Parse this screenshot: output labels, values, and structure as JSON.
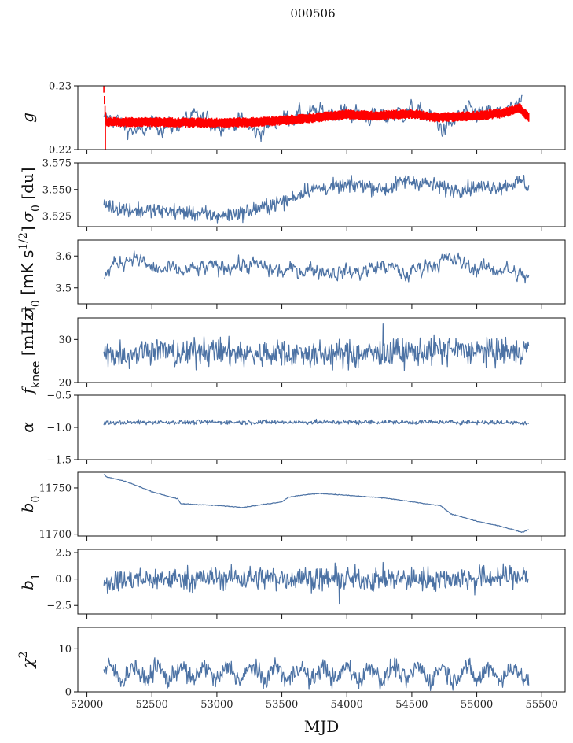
{
  "figure": {
    "title": "000506",
    "xlabel": "MJD"
  },
  "chart_data": {
    "type": "line",
    "title": "000506",
    "xlabel": "MJD",
    "xlim": [
      51930,
      55680
    ],
    "xticks": [
      52000,
      52500,
      53000,
      53500,
      54000,
      54500,
      55000,
      55500
    ],
    "xtick_labels": [
      "52000",
      "52500",
      "53000",
      "53500",
      "54000",
      "54500",
      "55000",
      "55500"
    ],
    "x_range_data": [
      52130,
      55400
    ],
    "grid": false,
    "panels": [
      {
        "id": "g",
        "ylabel": "g",
        "ylim": [
          0.22,
          0.23
        ],
        "yticks": [
          0.22,
          0.23
        ],
        "ytick_labels": [
          "0.22",
          "0.23"
        ],
        "series": [
          {
            "name": "g (blue)",
            "color": "#4c72a4",
            "style": "line",
            "points": [
              [
                52130,
                0.2245
              ],
              [
                52200,
                0.225
              ],
              [
                52300,
                0.2235
              ],
              [
                52400,
                0.2225
              ],
              [
                52500,
                0.224
              ],
              [
                52650,
                0.2235
              ],
              [
                52800,
                0.225
              ],
              [
                53000,
                0.224
              ],
              [
                53200,
                0.2245
              ],
              [
                53300,
                0.2225
              ],
              [
                53500,
                0.225
              ],
              [
                53700,
                0.2255
              ],
              [
                53900,
                0.226
              ],
              [
                54100,
                0.2255
              ],
              [
                54300,
                0.225
              ],
              [
                54500,
                0.2262
              ],
              [
                54650,
                0.225
              ],
              [
                54750,
                0.223
              ],
              [
                54900,
                0.2258
              ],
              [
                55100,
                0.2255
              ],
              [
                55300,
                0.2262
              ],
              [
                55350,
                0.2275
              ]
            ]
          },
          {
            "name": "g model (red)",
            "color": "#ff0000",
            "style": "band",
            "points": [
              [
                52130,
                0.2295
              ],
              [
                52140,
                0.226
              ],
              [
                52150,
                0.2243
              ],
              [
                52300,
                0.2243
              ],
              [
                52500,
                0.2243
              ],
              [
                53000,
                0.2242
              ],
              [
                53300,
                0.2243
              ],
              [
                53600,
                0.2247
              ],
              [
                54000,
                0.2255
              ],
              [
                54200,
                0.2253
              ],
              [
                54500,
                0.2256
              ],
              [
                54700,
                0.225
              ],
              [
                55000,
                0.2253
              ],
              [
                55200,
                0.2257
              ],
              [
                55330,
                0.2265
              ],
              [
                55400,
                0.225
              ]
            ],
            "band_halfwidth": 0.0008
          }
        ]
      },
      {
        "id": "sigma0",
        "ylabel": "σ0 [du]",
        "ylim": [
          3.515,
          3.575
        ],
        "yticks": [
          3.525,
          3.55,
          3.575
        ],
        "ytick_labels": [
          "3.525",
          "3.550",
          "3.575"
        ],
        "series": [
          {
            "name": "sigma0",
            "color": "#4c72a4",
            "style": "line",
            "points": [
              [
                52130,
                3.537
              ],
              [
                52200,
                3.533
              ],
              [
                52400,
                3.53
              ],
              [
                52600,
                3.53
              ],
              [
                52800,
                3.528
              ],
              [
                53000,
                3.525
              ],
              [
                53200,
                3.528
              ],
              [
                53400,
                3.535
              ],
              [
                53550,
                3.54
              ],
              [
                53700,
                3.55
              ],
              [
                53900,
                3.552
              ],
              [
                54100,
                3.555
              ],
              [
                54300,
                3.55
              ],
              [
                54450,
                3.558
              ],
              [
                54600,
                3.556
              ],
              [
                54800,
                3.55
              ],
              [
                55000,
                3.552
              ],
              [
                55200,
                3.553
              ],
              [
                55350,
                3.558
              ],
              [
                55400,
                3.552
              ]
            ]
          }
        ]
      },
      {
        "id": "sigma",
        "ylabel": "σ [mK s^1/2]",
        "ylim": [
          3.45,
          3.65
        ],
        "yticks": [
          3.5,
          3.6
        ],
        "ytick_labels": [
          "3.5",
          "3.6"
        ],
        "series": [
          {
            "name": "sigma",
            "color": "#4c72a4",
            "style": "line",
            "points": [
              [
                52130,
                3.53
              ],
              [
                52200,
                3.57
              ],
              [
                52350,
                3.6
              ],
              [
                52500,
                3.56
              ],
              [
                52700,
                3.55
              ],
              [
                52900,
                3.56
              ],
              [
                53100,
                3.57
              ],
              [
                53300,
                3.57
              ],
              [
                53500,
                3.55
              ],
              [
                53700,
                3.56
              ],
              [
                53900,
                3.55
              ],
              [
                54100,
                3.55
              ],
              [
                54300,
                3.57
              ],
              [
                54450,
                3.54
              ],
              [
                54600,
                3.57
              ],
              [
                54800,
                3.59
              ],
              [
                55000,
                3.56
              ],
              [
                55200,
                3.56
              ],
              [
                55400,
                3.53
              ]
            ]
          }
        ]
      },
      {
        "id": "fknee",
        "ylabel": "f_knee [mHz]",
        "ylim": [
          20,
          35
        ],
        "yticks": [
          20,
          30
        ],
        "ytick_labels": [
          "20",
          "30"
        ],
        "series": [
          {
            "name": "fknee",
            "color": "#4c72a4",
            "style": "line",
            "points": [
              [
                52130,
                27
              ],
              [
                52300,
                26.5
              ],
              [
                52500,
                28
              ],
              [
                52700,
                26.5
              ],
              [
                52900,
                27.5
              ],
              [
                53100,
                27
              ],
              [
                53300,
                26.5
              ],
              [
                53500,
                27
              ],
              [
                53700,
                26.5
              ],
              [
                53900,
                26.5
              ],
              [
                54100,
                26.5
              ],
              [
                54300,
                27
              ],
              [
                54500,
                27
              ],
              [
                54700,
                27.5
              ],
              [
                54900,
                27.5
              ],
              [
                55100,
                27
              ],
              [
                55300,
                27
              ],
              [
                55400,
                27.5
              ]
            ]
          }
        ]
      },
      {
        "id": "alpha",
        "ylabel": "α",
        "ylim": [
          -1.5,
          -0.5
        ],
        "yticks": [
          -1.5,
          -1.0,
          -0.5
        ],
        "ytick_labels": [
          "−1.5",
          "−1.0",
          "−0.5"
        ],
        "series": [
          {
            "name": "alpha",
            "color": "#4c72a4",
            "style": "line",
            "points": [
              [
                52130,
                -0.93
              ],
              [
                52500,
                -0.92
              ],
              [
                53000,
                -0.92
              ],
              [
                53500,
                -0.92
              ],
              [
                54000,
                -0.92
              ],
              [
                54500,
                -0.92
              ],
              [
                55000,
                -0.92
              ],
              [
                55400,
                -0.93
              ]
            ]
          }
        ]
      },
      {
        "id": "b0",
        "ylabel": "b0",
        "ylim": [
          11698,
          11767
        ],
        "yticks": [
          11700,
          11750
        ],
        "ytick_labels": [
          "11700",
          "11750"
        ],
        "series": [
          {
            "name": "b0",
            "color": "#4c72a4",
            "style": "smooth",
            "points": [
              [
                52130,
                11765
              ],
              [
                52150,
                11762
              ],
              [
                52300,
                11757
              ],
              [
                52500,
                11746
              ],
              [
                52700,
                11738
              ],
              [
                52720,
                11733
              ],
              [
                53000,
                11731
              ],
              [
                53200,
                11729
              ],
              [
                53400,
                11733
              ],
              [
                53500,
                11735
              ],
              [
                53550,
                11740
              ],
              [
                53700,
                11743
              ],
              [
                53800,
                11744
              ],
              [
                54000,
                11742
              ],
              [
                54200,
                11740
              ],
              [
                54300,
                11739
              ],
              [
                54500,
                11735
              ],
              [
                54600,
                11733
              ],
              [
                54720,
                11731
              ],
              [
                54800,
                11722
              ],
              [
                55000,
                11714
              ],
              [
                55200,
                11708
              ],
              [
                55350,
                11702
              ],
              [
                55400,
                11705
              ]
            ]
          }
        ]
      },
      {
        "id": "b1",
        "ylabel": "b1",
        "ylim": [
          -3.3,
          2.8
        ],
        "yticks": [
          -2.5,
          0.0,
          2.5
        ],
        "ytick_labels": [
          "−2.5",
          "0.0",
          "2.5"
        ],
        "series": [
          {
            "name": "b1",
            "color": "#4c72a4",
            "style": "line",
            "points": [
              [
                52130,
                -0.3
              ],
              [
                52500,
                0.0
              ],
              [
                53000,
                0.1
              ],
              [
                53500,
                0.1
              ],
              [
                54000,
                0.0
              ],
              [
                54500,
                0.0
              ],
              [
                55000,
                0.1
              ],
              [
                55400,
                0.3
              ]
            ]
          }
        ]
      },
      {
        "id": "chi2",
        "ylabel": "χ²",
        "ylim": [
          0,
          15
        ],
        "yticks": [
          0,
          10
        ],
        "ytick_labels": [
          "0",
          "10"
        ],
        "series": [
          {
            "name": "chi2",
            "color": "#4c72a4",
            "style": "seasonal",
            "points": [
              [
                52130,
                4
              ],
              [
                52300,
                5
              ],
              [
                52500,
                3
              ],
              [
                52700,
                4
              ],
              [
                52900,
                5
              ],
              [
                53100,
                4
              ],
              [
                53300,
                4
              ],
              [
                53500,
                5
              ],
              [
                53700,
                4
              ],
              [
                53900,
                4.5
              ],
              [
                54100,
                4
              ],
              [
                54300,
                4.5
              ],
              [
                54500,
                4
              ],
              [
                54700,
                4.5
              ],
              [
                54900,
                4
              ],
              [
                55100,
                4.5
              ],
              [
                55300,
                4
              ],
              [
                55400,
                5
              ]
            ]
          }
        ]
      }
    ]
  }
}
